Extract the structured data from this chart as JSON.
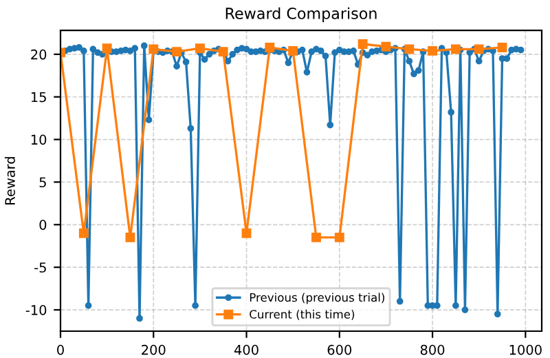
{
  "chart_data": {
    "type": "line",
    "title": "Reward Comparison",
    "ylabel": "Reward",
    "xlim": [
      0,
      1035
    ],
    "xticks": [
      0,
      200,
      400,
      600,
      800,
      1000
    ],
    "ylim": [
      -12.5,
      22.8
    ],
    "yticks": [
      -10,
      -5,
      0,
      5,
      10,
      15,
      20
    ],
    "grid": true,
    "legend": "bottom",
    "series": [
      {
        "name": "Previous (previous trial)",
        "color": "#1f77b4",
        "marker": "circle",
        "x": [
          0,
          10,
          20,
          30,
          40,
          50,
          60,
          70,
          80,
          90,
          100,
          110,
          120,
          130,
          140,
          150,
          160,
          170,
          180,
          190,
          200,
          210,
          220,
          230,
          240,
          250,
          260,
          270,
          280,
          290,
          300,
          310,
          320,
          330,
          340,
          350,
          360,
          370,
          380,
          390,
          400,
          410,
          420,
          430,
          440,
          450,
          460,
          470,
          480,
          490,
          500,
          510,
          520,
          530,
          540,
          550,
          560,
          570,
          580,
          590,
          600,
          610,
          620,
          630,
          640,
          650,
          660,
          670,
          680,
          690,
          700,
          710,
          720,
          730,
          740,
          750,
          760,
          770,
          780,
          790,
          800,
          810,
          820,
          830,
          840,
          850,
          860,
          870,
          880,
          890,
          900,
          910,
          920,
          930,
          940,
          950,
          960,
          970,
          980,
          990
        ],
        "values": [
          20.2,
          20.4,
          20.6,
          20.7,
          20.8,
          20.4,
          -9.5,
          20.6,
          20.2,
          20.0,
          20.4,
          20.3,
          20.3,
          20.4,
          20.5,
          20.4,
          20.7,
          -11,
          21.0,
          12.3,
          20.4,
          20.3,
          20.2,
          20.4,
          20.3,
          18.6,
          20.2,
          19.1,
          11.3,
          -9.5,
          20.2,
          19.4,
          20.0,
          20.4,
          20.6,
          20.4,
          19.2,
          20.0,
          20.5,
          20.7,
          20.6,
          20.3,
          20.3,
          20.4,
          20.3,
          20.5,
          20.4,
          20.3,
          20.5,
          19.0,
          20.4,
          20.3,
          20.5,
          17.9,
          20.3,
          20.6,
          20.4,
          19.8,
          11.7,
          20.2,
          20.5,
          20.3,
          20.3,
          20.4,
          18.8,
          20.2,
          19.9,
          20.3,
          20.4,
          20.5,
          20.3,
          20.5,
          20.7,
          -9.0,
          20.6,
          19.2,
          17.7,
          18.1,
          20.3,
          -9.5,
          -9.5,
          -9.5,
          20.7,
          20.2,
          13.2,
          -9.5,
          20.5,
          -10.0,
          20.2,
          20.6,
          19.2,
          20.4,
          20.6,
          20.4,
          -10.5,
          19.5,
          19.5,
          20.5,
          20.6,
          20.5
        ]
      },
      {
        "name": "Current (this time)",
        "color": "#ff7f0e",
        "marker": "square",
        "x": [
          0,
          50,
          100,
          150,
          200,
          250,
          300,
          350,
          400,
          450,
          500,
          550,
          600,
          650,
          700,
          750,
          800,
          850,
          900,
          950
        ],
        "values": [
          20.2,
          -1,
          20.7,
          -1.5,
          20.6,
          20.3,
          20.7,
          20.3,
          -1,
          20.8,
          20.4,
          -1.5,
          -1.5,
          21.2,
          20.9,
          20.6,
          20.4,
          20.6,
          20.6,
          20.8
        ]
      }
    ]
  }
}
